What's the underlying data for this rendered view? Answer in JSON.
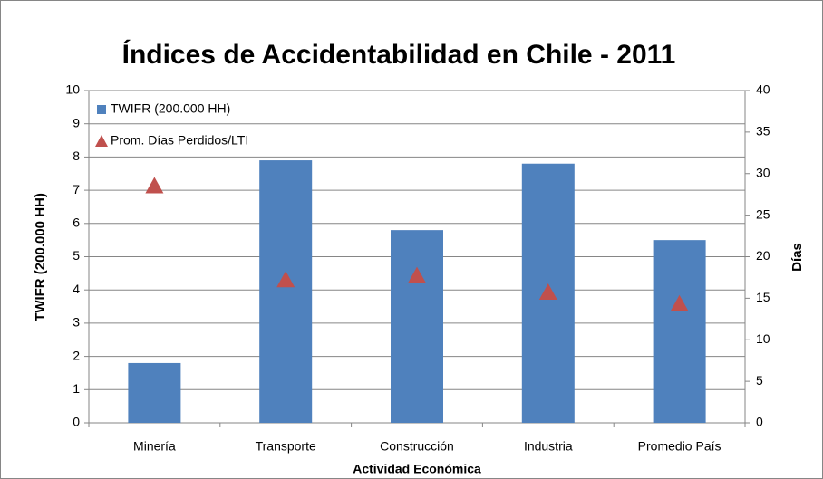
{
  "chart_data": {
    "type": "bar",
    "title": "Índices de Accidentabilidad en Chile - 2011",
    "x_label": "Actividad Económica",
    "y_label": "TWIFR (200.000 HH)",
    "y2_label": "Días",
    "categories": [
      "Minería",
      "Transporte",
      "Construcción",
      "Industria",
      "Promedio País"
    ],
    "series": [
      {
        "name": "TWIFR (200.000 HH)",
        "type": "bar",
        "color": "#4f81bd",
        "values": [
          1.8,
          7.9,
          5.8,
          7.8,
          5.5
        ]
      },
      {
        "name": "Prom. Días Perdidos/LTI",
        "type": "scatter",
        "marker": "triangle",
        "axis": "y2",
        "color": "#c0504d",
        "values": [
          28.5,
          17.2,
          17.7,
          15.7,
          14.3
        ]
      }
    ],
    "ylim": [
      0,
      10
    ],
    "yticks": [
      0,
      1,
      2,
      3,
      4,
      5,
      6,
      7,
      8,
      9,
      10
    ],
    "y2lim": [
      0,
      40
    ],
    "y2ticks": [
      0,
      5,
      10,
      15,
      20,
      25,
      30,
      35,
      40
    ],
    "grid": true,
    "legend": "top-left"
  }
}
